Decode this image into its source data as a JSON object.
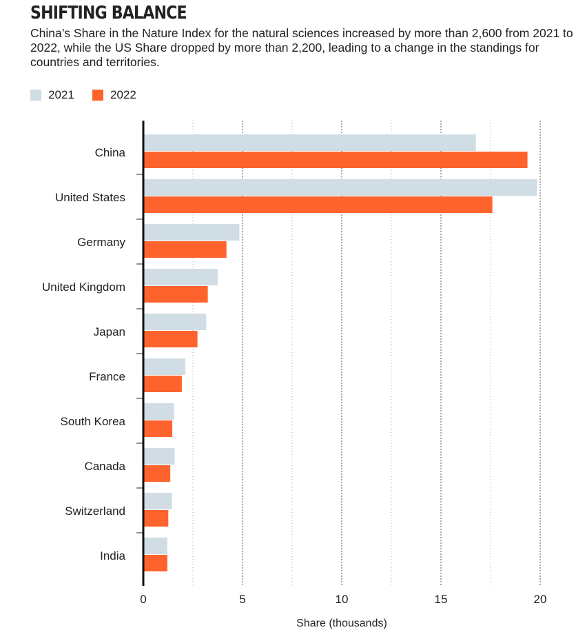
{
  "title": "SHIFTING BALANCE",
  "subtitle": "China’s Share in the Nature Index for the natural sciences increased by more than 2,600 from 2021 to 2022, while the US Share dropped by more than 2,200, leading to a change in the standings for countries and territories.",
  "chart_data": {
    "type": "bar",
    "orientation": "horizontal",
    "title": "SHIFTING BALANCE",
    "xlabel": "Share (thousands)",
    "ylabel": "",
    "xlim": [
      0,
      20
    ],
    "xticks": [
      0,
      5,
      10,
      15,
      20
    ],
    "xtick_labels": [
      "0",
      "5",
      "10",
      "15",
      "20"
    ],
    "grid": "vertical dotted every 2.5",
    "legend": "top-left",
    "categories": [
      "China",
      "United States",
      "Germany",
      "United Kingdom",
      "Japan",
      "France",
      "South Korea",
      "Canada",
      "Switzerland",
      "India"
    ],
    "series": [
      {
        "name": "2021",
        "color": "#d1dde4",
        "values": [
          16.76,
          19.84,
          4.84,
          3.75,
          3.17,
          2.12,
          1.55,
          1.58,
          1.44,
          1.21
        ]
      },
      {
        "name": "2022",
        "color": "#ff632d",
        "values": [
          19.36,
          17.59,
          4.19,
          3.25,
          2.73,
          1.94,
          1.46,
          1.36,
          1.26,
          1.21
        ]
      }
    ]
  }
}
